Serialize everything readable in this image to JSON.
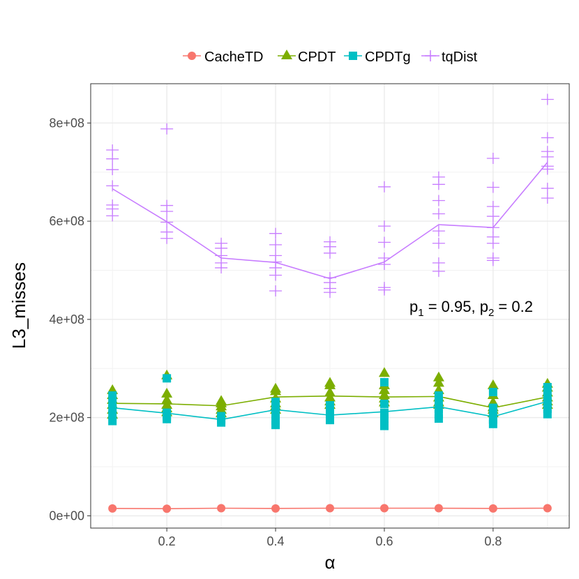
{
  "chart_data": {
    "type": "line",
    "title": "",
    "xlabel": "α",
    "ylabel": "L3_misses",
    "xlim": [
      0.06,
      0.94
    ],
    "ylim": [
      -25000000,
      880000000
    ],
    "x_ticks": [
      0.2,
      0.4,
      0.6,
      0.8
    ],
    "x_tick_labels": [
      "0.2",
      "0.4",
      "0.6",
      "0.8"
    ],
    "y_ticks": [
      0,
      200000000,
      400000000,
      600000000,
      800000000
    ],
    "y_tick_labels": [
      "0e+00",
      "2e+08",
      "4e+08",
      "6e+08",
      "8e+08"
    ],
    "grid": true,
    "legend_position": "top",
    "x": [
      0.1,
      0.2,
      0.3,
      0.4,
      0.5,
      0.6,
      0.7,
      0.8,
      0.9
    ],
    "annotation": {
      "p1_label": "p",
      "p1_sub": "1",
      "p1_value": " = 0.95, ",
      "p2_label": "p",
      "p2_sub": "2",
      "p2_value": " = 0.2"
    },
    "series": [
      {
        "name": "CacheTD",
        "color": "#F8766D",
        "marker": "circle",
        "mean": [
          15000000,
          14500000,
          15500000,
          15000000,
          15500000,
          15500000,
          15500000,
          15000000,
          15500000
        ],
        "points": [
          [
            15000000
          ],
          [
            14500000
          ],
          [
            15500000
          ],
          [
            15000000
          ],
          [
            15500000
          ],
          [
            15500000
          ],
          [
            15500000
          ],
          [
            15000000
          ],
          [
            15500000
          ]
        ]
      },
      {
        "name": "CPDT",
        "color": "#7CAE00",
        "marker": "triangle",
        "mean": [
          229000000,
          228000000,
          224000000,
          242000000,
          244000000,
          242000000,
          243000000,
          220000000,
          242000000
        ],
        "points": [
          [
            255000000,
            245000000,
            235000000,
            225000000,
            215000000,
            205000000
          ],
          [
            285000000,
            248000000,
            235000000,
            225000000,
            218000000,
            210000000
          ],
          [
            233000000,
            228000000,
            222000000,
            215000000,
            208000000
          ],
          [
            258000000,
            253000000,
            238000000,
            228000000,
            222000000,
            215000000
          ],
          [
            270000000,
            265000000,
            250000000,
            240000000,
            232000000,
            225000000
          ],
          [
            290000000,
            265000000,
            255000000,
            245000000,
            238000000,
            230000000
          ],
          [
            281000000,
            270000000,
            255000000,
            240000000,
            230000000,
            225000000
          ],
          [
            265000000,
            245000000,
            230000000,
            220000000,
            215000000,
            208000000
          ],
          [
            268000000,
            260000000,
            250000000,
            240000000,
            232000000,
            225000000
          ]
        ]
      },
      {
        "name": "CPDTg",
        "color": "#00BFC4",
        "marker": "square",
        "mean": [
          220000000,
          209000000,
          196000000,
          216000000,
          205000000,
          212000000,
          222000000,
          202000000,
          233000000
        ],
        "points": [
          [
            245000000,
            230000000,
            218000000,
            205000000,
            193000000
          ],
          [
            280000000,
            210000000,
            203000000,
            197000000
          ],
          [
            203000000,
            196000000,
            190000000
          ],
          [
            232000000,
            218000000,
            205000000,
            194000000,
            185000000
          ],
          [
            225000000,
            212000000,
            203000000,
            195000000
          ],
          [
            272000000,
            228000000,
            210000000,
            198000000,
            183000000
          ],
          [
            245000000,
            232000000,
            218000000,
            207000000,
            198000000
          ],
          [
            252000000,
            220000000,
            207000000,
            196000000,
            187000000
          ],
          [
            262000000,
            245000000,
            232000000,
            218000000,
            207000000
          ]
        ]
      },
      {
        "name": "tqDist",
        "color": "#C77CFF",
        "marker": "plus",
        "mean": [
          666000000,
          599000000,
          525000000,
          516000000,
          483000000,
          517000000,
          593000000,
          587000000,
          720000000
        ],
        "points": [
          [
            745000000,
            727000000,
            705000000,
            672000000,
            633000000,
            625000000,
            611000000
          ],
          [
            788000000,
            632000000,
            620000000,
            598000000,
            578000000,
            565000000
          ],
          [
            555000000,
            545000000,
            530000000,
            515000000,
            505000000
          ],
          [
            575000000,
            552000000,
            530000000,
            517000000,
            505000000,
            490000000,
            458000000
          ],
          [
            558000000,
            548000000,
            535000000,
            485000000,
            475000000,
            463000000,
            455000000
          ],
          [
            670000000,
            590000000,
            557000000,
            525000000,
            512000000,
            465000000,
            460000000
          ],
          [
            690000000,
            675000000,
            642000000,
            615000000,
            580000000,
            555000000,
            515000000,
            498000000
          ],
          [
            728000000,
            669000000,
            630000000,
            610000000,
            587000000,
            568000000,
            555000000,
            525000000,
            520000000
          ],
          [
            848000000,
            770000000,
            742000000,
            731000000,
            712000000,
            706000000,
            667000000,
            647000000
          ]
        ]
      }
    ]
  }
}
